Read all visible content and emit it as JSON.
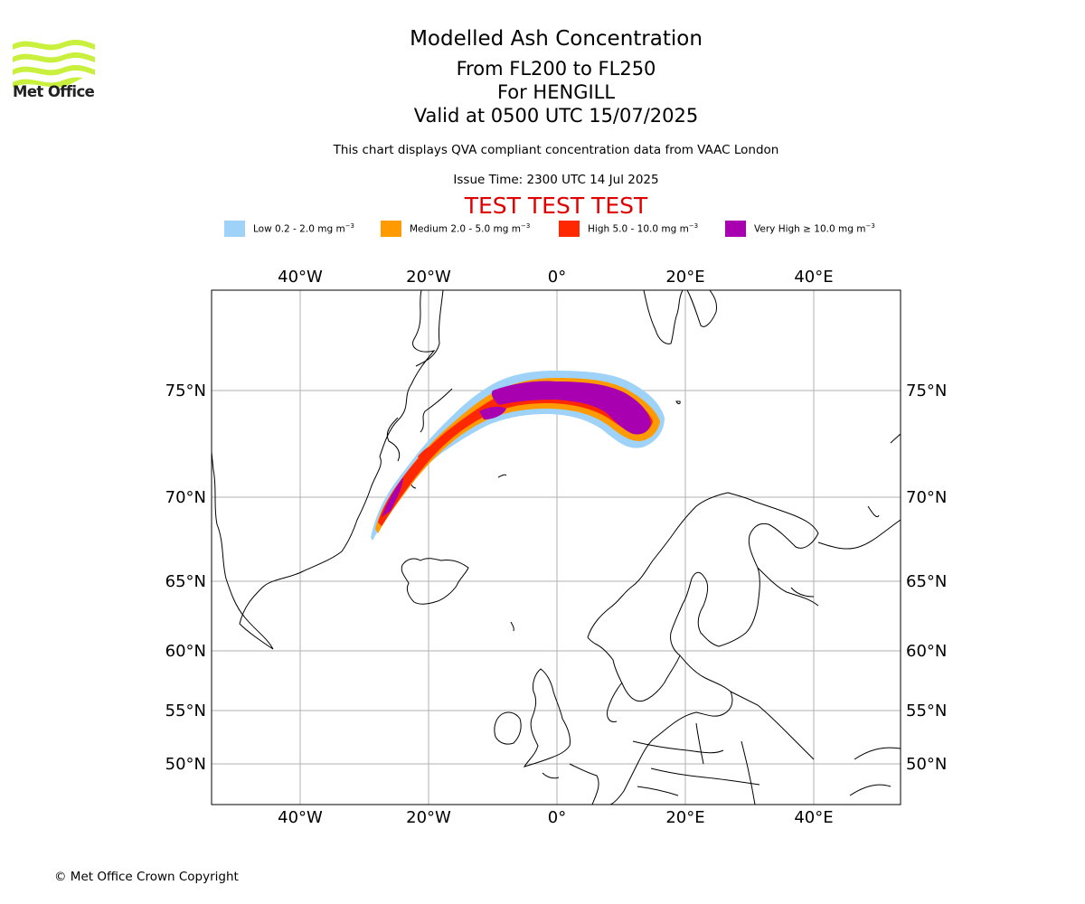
{
  "header": {
    "logo_text": "Met Office",
    "title": "Modelled Ash Concentration",
    "level_range": "From FL200 to FL250",
    "for_line": "For HENGILL",
    "valid_line": "Valid at 0500 UTC 15/07/2025",
    "description": "This chart displays QVA compliant concentration data from VAAC London",
    "issue_time": "Issue Time: 2300 UTC 14 Jul 2025",
    "test_banner": "TEST TEST TEST"
  },
  "legend": {
    "items": [
      {
        "label": "Low 0.2 - 2.0 mg m",
        "sup": "−3",
        "color": "#9ed2f8"
      },
      {
        "label": "Medium 2.0 - 5.0 mg m",
        "sup": "−3",
        "color": "#ff9a00"
      },
      {
        "label": "High 5.0 - 10.0 mg m",
        "sup": "−3",
        "color": "#ff2800"
      },
      {
        "label": "Very High  ≥  10.0 mg m",
        "sup": "−3",
        "color": "#a800b0"
      }
    ]
  },
  "map": {
    "lon_ticks": [
      "40°W",
      "20°W",
      "0°",
      "20°E",
      "40°E"
    ],
    "lat_ticks": [
      "75°N",
      "70°N",
      "65°N",
      "60°N",
      "55°N",
      "50°N"
    ],
    "gridlines": true,
    "test_banner_color": "#e00000"
  },
  "footer": {
    "copyright": "© Met Office Crown Copyright"
  }
}
